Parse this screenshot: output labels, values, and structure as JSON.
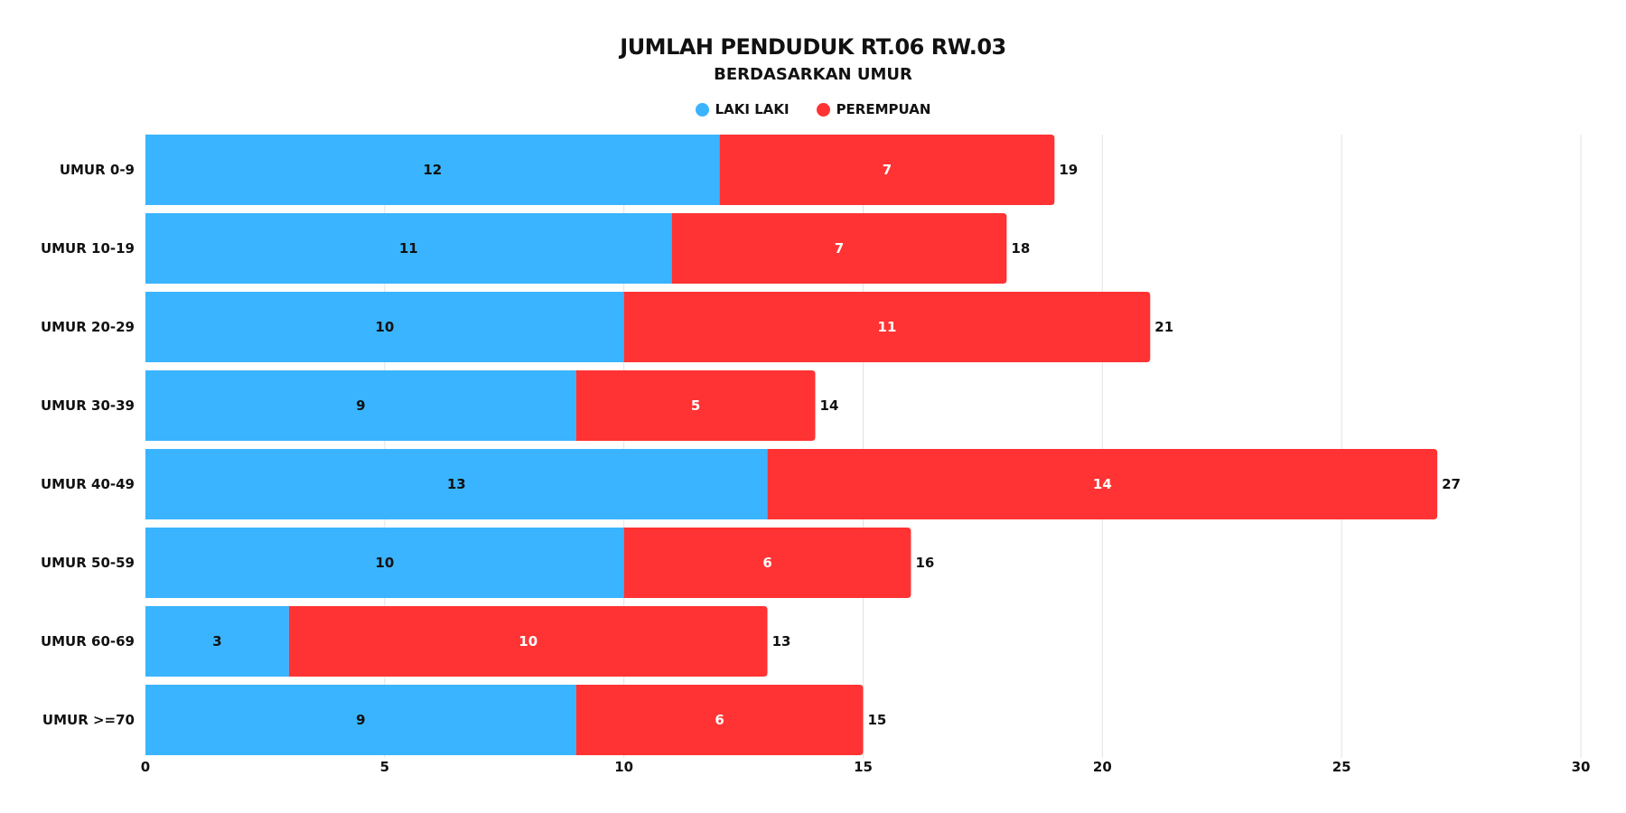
{
  "chart_data": {
    "type": "bar",
    "orientation": "horizontal",
    "stacked": true,
    "title": "JUMLAH PENDUDUK RT.06 RW.03",
    "subtitle": "BERDASARKAN UMUR",
    "categories": [
      "UMUR 0-9",
      "UMUR 10-19",
      "UMUR 20-29",
      "UMUR 30-39",
      "UMUR 40-49",
      "UMUR 50-59",
      "UMUR 60-69",
      "UMUR >=70"
    ],
    "series": [
      {
        "name": "LAKI LAKI",
        "color": "#3AB4FE",
        "values": [
          12,
          11,
          10,
          9,
          13,
          10,
          3,
          9
        ]
      },
      {
        "name": "PEREMPUAN",
        "color": "#FF3333",
        "values": [
          7,
          7,
          11,
          5,
          14,
          6,
          10,
          6
        ]
      }
    ],
    "totals": [
      19,
      18,
      21,
      14,
      27,
      16,
      13,
      15
    ],
    "xlim": [
      0,
      30
    ],
    "xticks": [
      0,
      5,
      10,
      15,
      20,
      25,
      30
    ],
    "xlabel": "",
    "ylabel": "",
    "grid": "vertical",
    "legend": "top-center"
  }
}
